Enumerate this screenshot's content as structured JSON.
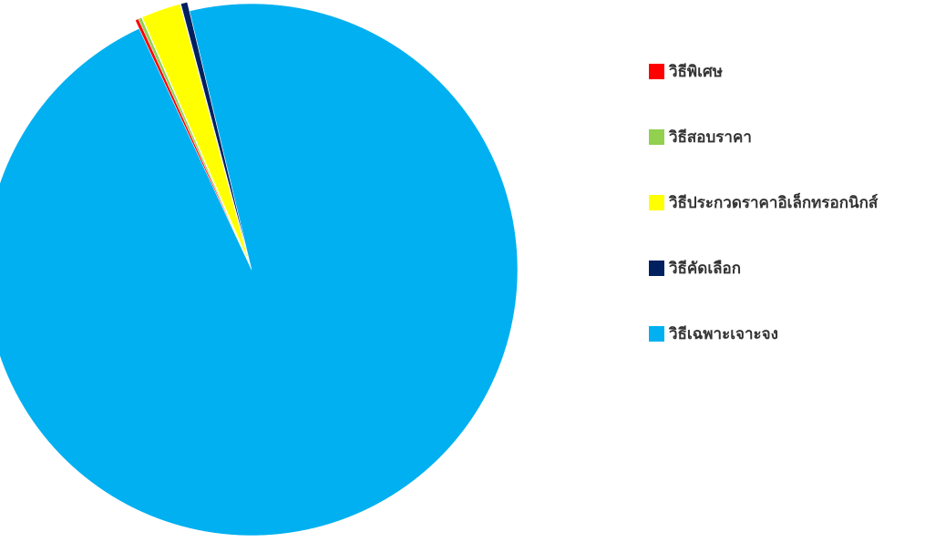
{
  "chart_data": {
    "type": "pie",
    "exploded": true,
    "legend_position": "right",
    "title": "",
    "slices": [
      {
        "label": "วิธีพิเศษ",
        "value": 0.2,
        "color": "#ff0000"
      },
      {
        "label": "วิธีสอบราคา",
        "value": 0.2,
        "color": "#92d050"
      },
      {
        "label": "วิธีประกวดราคาอิเล็กทรอกนิกส์",
        "value": 2.4,
        "color": "#ffff00"
      },
      {
        "label": "วิธีคัดเลือก",
        "value": 0.4,
        "color": "#002060"
      },
      {
        "label": "วิธีเฉพาะเจาะจง",
        "value": 96.8,
        "color": "#00b0f0"
      }
    ]
  }
}
